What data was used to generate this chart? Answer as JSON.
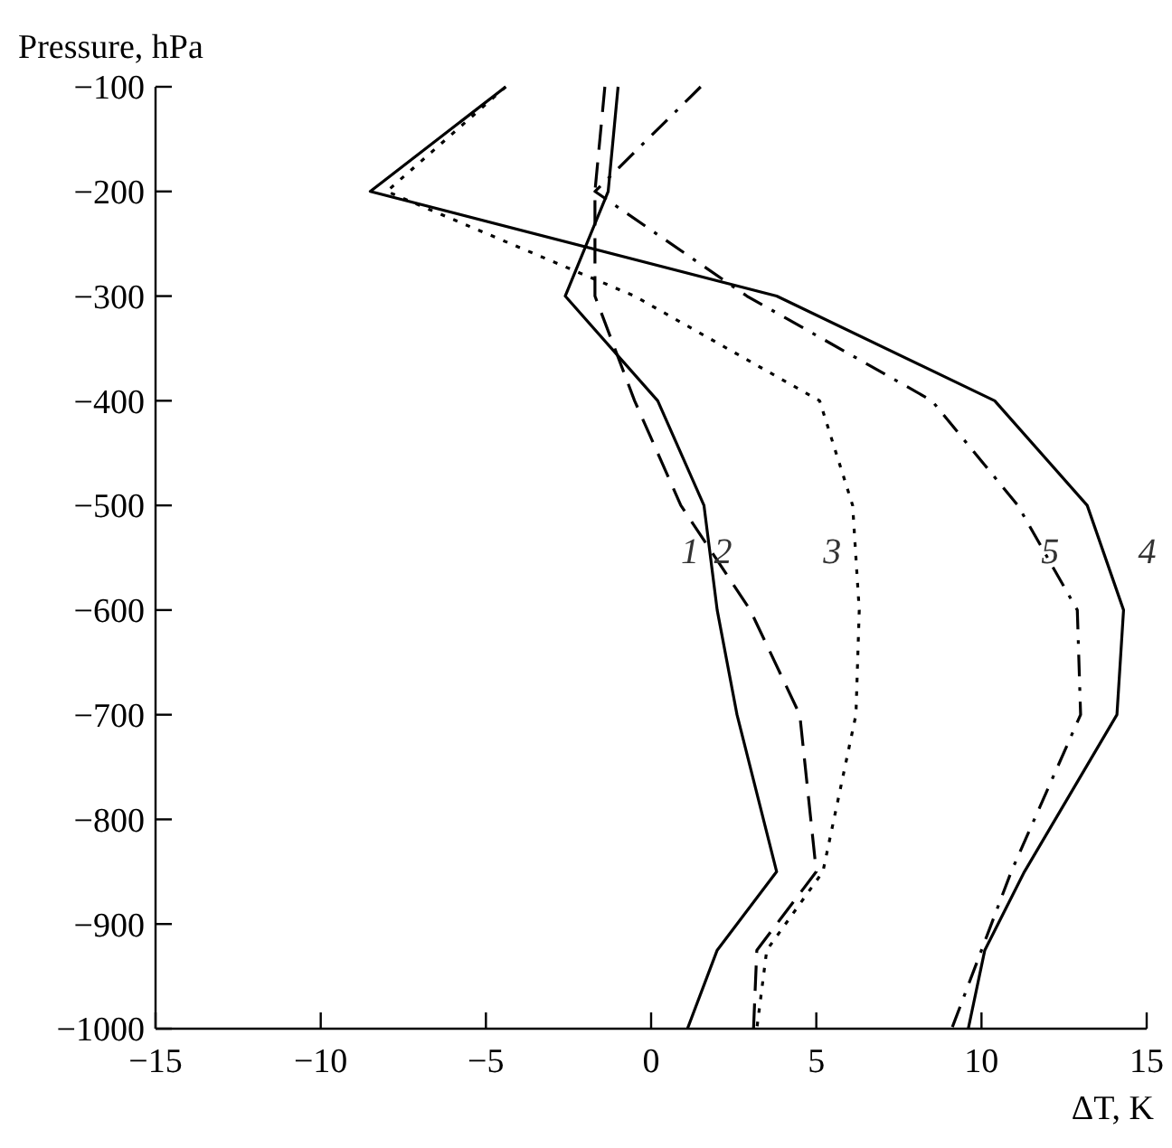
{
  "chart_data": {
    "type": "line",
    "xlabel": "ΔT, K",
    "ylabel": "Pressure, hPa",
    "xlim": [
      -15,
      15
    ],
    "ylim": [
      -1000,
      -100
    ],
    "xticks": [
      {
        "value": -15,
        "label": "−15"
      },
      {
        "value": -10,
        "label": "−10"
      },
      {
        "value": -5,
        "label": "−5"
      },
      0,
      5,
      10,
      15
    ],
    "yticks": [
      {
        "value": -1000,
        "label": "−1000"
      },
      {
        "value": -900,
        "label": "−900"
      },
      {
        "value": -800,
        "label": "−800"
      },
      {
        "value": -700,
        "label": "−700"
      },
      {
        "value": -600,
        "label": "−600"
      },
      {
        "value": -500,
        "label": "−500"
      },
      {
        "value": -400,
        "label": "−400"
      },
      {
        "value": -300,
        "label": "−300"
      },
      {
        "value": -200,
        "label": "−200"
      },
      {
        "value": -100,
        "label": "−100"
      }
    ],
    "grid": false,
    "marker": "none",
    "series": [
      {
        "name": "1",
        "color": "#000000",
        "line_style": "solid",
        "x": [
          -1.0,
          -1.3,
          -2.6,
          0.2,
          1.6,
          2.0,
          2.6,
          3.8,
          2.0,
          1.1
        ],
        "values": [
          -100,
          -200,
          -300,
          -400,
          -500,
          -600,
          -700,
          -850,
          -925,
          -1000
        ]
      },
      {
        "name": "2",
        "color": "#000000",
        "line_style": "dashed",
        "x": [
          -1.4,
          -1.7,
          -1.7,
          -0.5,
          0.9,
          3.0,
          4.5,
          5.0,
          3.2,
          3.1
        ],
        "values": [
          -100,
          -200,
          -300,
          -400,
          -500,
          -600,
          -700,
          -850,
          -925,
          -1000
        ]
      },
      {
        "name": "3",
        "color": "#000000",
        "line_style": "dotted",
        "x": [
          -4.4,
          -8.0,
          -0.5,
          5.1,
          6.1,
          6.3,
          6.2,
          5.2,
          3.5,
          3.2
        ],
        "values": [
          -100,
          -200,
          -300,
          -400,
          -500,
          -600,
          -700,
          -850,
          -925,
          -1000
        ]
      },
      {
        "name": "4",
        "color": "#000000",
        "line_style": "solid",
        "x": [
          -4.4,
          -8.5,
          3.8,
          10.4,
          13.2,
          14.3,
          14.1,
          11.3,
          10.1,
          9.6
        ],
        "values": [
          -100,
          -200,
          -300,
          -400,
          -500,
          -600,
          -700,
          -850,
          -925,
          -1000
        ]
      },
      {
        "name": "5",
        "color": "#000000",
        "line_style": "dashdot",
        "x": [
          1.5,
          -1.7,
          2.9,
          8.5,
          11.1,
          12.9,
          13.0,
          10.9,
          10.0,
          9.1
        ],
        "values": [
          -100,
          -200,
          -300,
          -400,
          -500,
          -600,
          -700,
          -850,
          -925,
          -1000
        ]
      }
    ]
  }
}
